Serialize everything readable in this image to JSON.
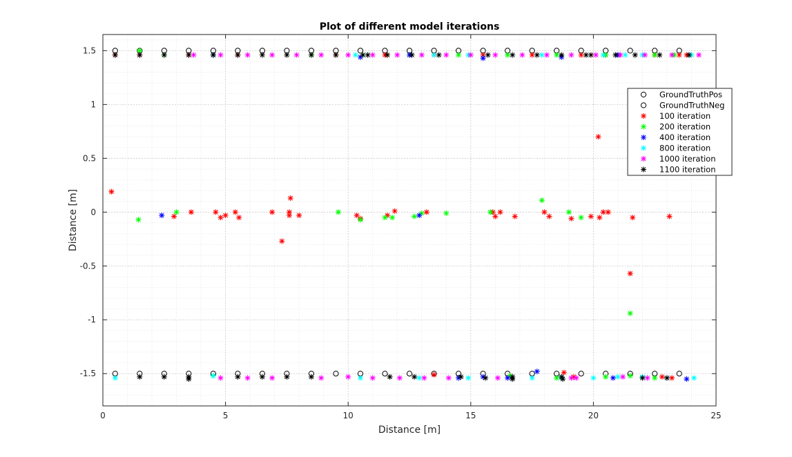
{
  "chart_data": {
    "type": "scatter",
    "title": "Plot of different model iterations",
    "xlabel": "Distance [m]",
    "ylabel": "Distance [m]",
    "xlim": [
      0,
      25
    ],
    "ylim": [
      -1.8,
      1.65
    ],
    "xticks": [
      0,
      5,
      10,
      15,
      20,
      25
    ],
    "yticks": [
      1.5,
      1,
      0.5,
      0,
      -0.5,
      -1,
      -1.5
    ],
    "ytick_labels": [
      "1.5",
      "1",
      "0.5",
      "0",
      "-0.5",
      "-1",
      "-1.5"
    ],
    "grid": "major-and-minor",
    "legend_position": "top-right",
    "series": [
      {
        "name": "GroundTruthPos",
        "marker": "o",
        "color": "#000000",
        "points": [
          [
            0.5,
            1.5
          ],
          [
            1.5,
            1.5
          ],
          [
            2.5,
            1.5
          ],
          [
            3.5,
            1.5
          ],
          [
            4.5,
            1.5
          ],
          [
            5.5,
            1.5
          ],
          [
            6.5,
            1.5
          ],
          [
            7.5,
            1.5
          ],
          [
            8.5,
            1.5
          ],
          [
            9.5,
            1.5
          ],
          [
            10.5,
            1.5
          ],
          [
            11.5,
            1.5
          ],
          [
            12.5,
            1.5
          ],
          [
            13.5,
            1.5
          ],
          [
            14.5,
            1.5
          ],
          [
            15.5,
            1.5
          ],
          [
            16.5,
            1.5
          ],
          [
            17.5,
            1.5
          ],
          [
            18.5,
            1.5
          ],
          [
            19.5,
            1.5
          ],
          [
            20.5,
            1.5
          ],
          [
            21.5,
            1.5
          ],
          [
            22.5,
            1.5
          ],
          [
            23.5,
            1.5
          ]
        ]
      },
      {
        "name": "GroundTruthNeg",
        "marker": "o",
        "color": "#000000",
        "points": [
          [
            0.5,
            -1.5
          ],
          [
            1.5,
            -1.5
          ],
          [
            2.5,
            -1.5
          ],
          [
            3.5,
            -1.5
          ],
          [
            4.5,
            -1.5
          ],
          [
            5.5,
            -1.5
          ],
          [
            6.5,
            -1.5
          ],
          [
            7.5,
            -1.5
          ],
          [
            8.5,
            -1.5
          ],
          [
            9.5,
            -1.5
          ],
          [
            10.5,
            -1.5
          ],
          [
            11.5,
            -1.5
          ],
          [
            12.5,
            -1.5
          ],
          [
            13.5,
            -1.5
          ],
          [
            14.5,
            -1.5
          ],
          [
            15.5,
            -1.5
          ],
          [
            16.5,
            -1.5
          ],
          [
            17.5,
            -1.5
          ],
          [
            18.5,
            -1.5
          ],
          [
            19.5,
            -1.5
          ],
          [
            20.5,
            -1.5
          ],
          [
            21.5,
            -1.5
          ],
          [
            22.5,
            -1.5
          ],
          [
            23.5,
            -1.5
          ]
        ]
      },
      {
        "name": "100 iteration",
        "marker": "*",
        "color": "#ff0000",
        "points": [
          [
            0.35,
            0.19
          ],
          [
            2.9,
            -0.04
          ],
          [
            3.6,
            0
          ],
          [
            4.6,
            0
          ],
          [
            4.8,
            -0.05
          ],
          [
            5.0,
            -0.03
          ],
          [
            5.4,
            0
          ],
          [
            5.55,
            -0.05
          ],
          [
            6.9,
            0
          ],
          [
            7.3,
            -0.27
          ],
          [
            7.6,
            0
          ],
          [
            7.6,
            -0.03
          ],
          [
            7.65,
            0.13
          ],
          [
            8.0,
            -0.03
          ],
          [
            10.35,
            -0.03
          ],
          [
            10.5,
            -0.06
          ],
          [
            11.6,
            -0.03
          ],
          [
            11.9,
            0.01
          ],
          [
            13.2,
            0
          ],
          [
            15.9,
            0
          ],
          [
            16.0,
            -0.04
          ],
          [
            16.2,
            0
          ],
          [
            16.8,
            -0.04
          ],
          [
            18.0,
            0
          ],
          [
            18.2,
            -0.04
          ],
          [
            19.1,
            -0.06
          ],
          [
            19.9,
            -0.04
          ],
          [
            20.2,
            0.7
          ],
          [
            20.25,
            -0.05
          ],
          [
            20.4,
            0
          ],
          [
            20.6,
            0
          ],
          [
            21.5,
            -0.57
          ],
          [
            21.6,
            -0.05
          ],
          [
            23.1,
            -0.04
          ],
          [
            0.5,
            1.46
          ],
          [
            1.5,
            1.46
          ],
          [
            3.5,
            1.46
          ],
          [
            5.5,
            1.46
          ],
          [
            9.5,
            1.46
          ],
          [
            11.5,
            1.46
          ],
          [
            13.5,
            1.46
          ],
          [
            15.5,
            1.46
          ],
          [
            17.5,
            1.46
          ],
          [
            19.5,
            1.46
          ],
          [
            20.5,
            1.46
          ],
          [
            22.5,
            1.46
          ],
          [
            23.5,
            1.46
          ],
          [
            23.8,
            1.46
          ],
          [
            13.5,
            -1.51
          ],
          [
            18.8,
            -1.49
          ],
          [
            19.2,
            -1.53
          ],
          [
            22.8,
            -1.53
          ],
          [
            23.2,
            -1.54
          ]
        ]
      },
      {
        "name": "200 iteration",
        "marker": "*",
        "color": "#00ff00",
        "points": [
          [
            1.45,
            -0.07
          ],
          [
            3.0,
            0
          ],
          [
            9.6,
            0
          ],
          [
            10.5,
            -0.07
          ],
          [
            11.5,
            -0.05
          ],
          [
            11.8,
            -0.05
          ],
          [
            12.7,
            -0.04
          ],
          [
            13.0,
            -0.01
          ],
          [
            14.0,
            -0.01
          ],
          [
            15.8,
            0
          ],
          [
            17.9,
            0.11
          ],
          [
            19.0,
            0
          ],
          [
            19.5,
            -0.05
          ],
          [
            21.5,
            -0.94
          ],
          [
            1.5,
            1.5
          ],
          [
            2.5,
            1.46
          ],
          [
            4.5,
            1.46
          ],
          [
            8.5,
            1.46
          ],
          [
            10.6,
            1.46
          ],
          [
            12.5,
            1.46
          ],
          [
            14.5,
            1.46
          ],
          [
            16.5,
            1.46
          ],
          [
            18.5,
            1.46
          ],
          [
            20.5,
            1.46
          ],
          [
            22.5,
            1.46
          ],
          [
            23.3,
            1.46
          ],
          [
            4.5,
            -1.52
          ],
          [
            16.6,
            -1.52
          ],
          [
            18.5,
            -1.54
          ],
          [
            20.5,
            -1.53
          ],
          [
            21.5,
            -1.52
          ],
          [
            22.5,
            -1.54
          ]
        ]
      },
      {
        "name": "400 iteration",
        "marker": "*",
        "color": "#0000ff",
        "points": [
          [
            2.4,
            -0.03
          ],
          [
            12.9,
            -0.03
          ],
          [
            4.5,
            1.46
          ],
          [
            10.5,
            1.44
          ],
          [
            12.5,
            1.46
          ],
          [
            15.5,
            1.43
          ],
          [
            18.7,
            1.44
          ],
          [
            21.0,
            1.46
          ],
          [
            17.7,
            -1.48
          ],
          [
            14.5,
            -1.54
          ],
          [
            15.5,
            -1.53
          ],
          [
            16.5,
            -1.54
          ],
          [
            20.8,
            -1.54
          ],
          [
            23.8,
            -1.55
          ]
        ]
      },
      {
        "name": "800 iteration",
        "marker": "*",
        "color": "#00ffff",
        "points": [
          [
            10.3,
            1.46
          ],
          [
            13.5,
            1.46
          ],
          [
            14.9,
            1.46
          ],
          [
            17.9,
            1.46
          ],
          [
            20.4,
            1.46
          ],
          [
            21.3,
            1.46
          ],
          [
            22.0,
            1.46
          ],
          [
            24.0,
            1.46
          ],
          [
            0.5,
            -1.54
          ],
          [
            4.5,
            -1.52
          ],
          [
            10.5,
            -1.54
          ],
          [
            12.9,
            -1.54
          ],
          [
            14.9,
            -1.54
          ],
          [
            17.5,
            -1.54
          ],
          [
            18.7,
            -1.54
          ],
          [
            20.0,
            -1.54
          ],
          [
            21.0,
            -1.53
          ],
          [
            22.0,
            -1.53
          ],
          [
            23.0,
            -1.54
          ],
          [
            24.1,
            -1.54
          ]
        ]
      },
      {
        "name": "1000 iteration",
        "marker": "*",
        "color": "#ff00ff",
        "points": [
          [
            3.7,
            1.46
          ],
          [
            4.8,
            1.46
          ],
          [
            5.9,
            1.46
          ],
          [
            6.9,
            1.46
          ],
          [
            7.9,
            1.46
          ],
          [
            8.9,
            1.46
          ],
          [
            10.0,
            1.46
          ],
          [
            11.0,
            1.46
          ],
          [
            12.0,
            1.46
          ],
          [
            13.0,
            1.46
          ],
          [
            14.0,
            1.46
          ],
          [
            15.0,
            1.46
          ],
          [
            16.0,
            1.46
          ],
          [
            17.1,
            1.46
          ],
          [
            18.1,
            1.46
          ],
          [
            19.1,
            1.46
          ],
          [
            20.1,
            1.46
          ],
          [
            21.1,
            1.46
          ],
          [
            22.1,
            1.46
          ],
          [
            23.2,
            1.46
          ],
          [
            24.3,
            1.46
          ],
          [
            4.8,
            -1.54
          ],
          [
            5.9,
            -1.54
          ],
          [
            6.9,
            -1.54
          ],
          [
            8.9,
            -1.54
          ],
          [
            10.0,
            -1.53
          ],
          [
            11.0,
            -1.54
          ],
          [
            12.1,
            -1.54
          ],
          [
            13.1,
            -1.54
          ],
          [
            14.1,
            -1.54
          ],
          [
            16.1,
            -1.54
          ],
          [
            19.1,
            -1.54
          ],
          [
            19.3,
            -1.54
          ],
          [
            21.2,
            -1.53
          ],
          [
            22.2,
            -1.54
          ]
        ]
      },
      {
        "name": "1100 iteration",
        "marker": "*",
        "color": "#000000",
        "points": [
          [
            0.5,
            1.46
          ],
          [
            1.5,
            1.46
          ],
          [
            2.5,
            1.46
          ],
          [
            3.5,
            1.46
          ],
          [
            4.5,
            1.46
          ],
          [
            5.5,
            1.46
          ],
          [
            6.5,
            1.46
          ],
          [
            7.5,
            1.46
          ],
          [
            8.5,
            1.46
          ],
          [
            9.5,
            1.46
          ],
          [
            10.6,
            1.46
          ],
          [
            10.8,
            1.46
          ],
          [
            11.6,
            1.46
          ],
          [
            12.6,
            1.46
          ],
          [
            13.7,
            1.46
          ],
          [
            15.7,
            1.46
          ],
          [
            16.7,
            1.46
          ],
          [
            17.7,
            1.46
          ],
          [
            18.7,
            1.46
          ],
          [
            19.7,
            1.46
          ],
          [
            19.9,
            1.46
          ],
          [
            20.9,
            1.46
          ],
          [
            21.7,
            1.46
          ],
          [
            22.7,
            1.46
          ],
          [
            23.9,
            1.46
          ],
          [
            1.5,
            -1.53
          ],
          [
            2.5,
            -1.53
          ],
          [
            3.5,
            -1.53
          ],
          [
            3.5,
            -1.55
          ],
          [
            5.5,
            -1.53
          ],
          [
            6.5,
            -1.53
          ],
          [
            7.5,
            -1.53
          ],
          [
            8.5,
            -1.53
          ],
          [
            11.7,
            -1.53
          ],
          [
            12.7,
            -1.53
          ],
          [
            14.6,
            -1.53
          ],
          [
            15.6,
            -1.54
          ],
          [
            16.7,
            -1.53
          ],
          [
            16.7,
            -1.55
          ],
          [
            18.7,
            -1.53
          ],
          [
            18.75,
            -1.55
          ],
          [
            22.0,
            -1.54
          ],
          [
            23.0,
            -1.54
          ]
        ]
      }
    ]
  }
}
